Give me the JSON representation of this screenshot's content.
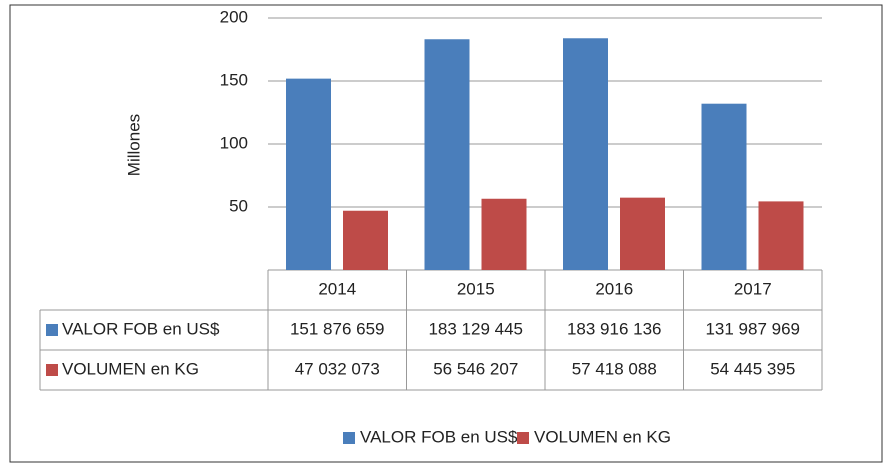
{
  "chart_data": {
    "type": "bar",
    "y_label": "Millones",
    "categories": [
      "2014",
      "2015",
      "2016",
      "2017"
    ],
    "series": [
      {
        "name": "VALOR FOB en US$",
        "color": "#4a7ebb",
        "values": [
          151.876659,
          183.129445,
          183.916136,
          131.987969
        ],
        "value_labels": [
          "151 876 659",
          "183 129 445",
          "183 916 136",
          "131 987 969"
        ]
      },
      {
        "name": "VOLUMEN en KG",
        "color": "#be4b48",
        "values": [
          47.032073,
          56.546207,
          57.418088,
          54.445395
        ],
        "value_labels": [
          "47 032 073",
          "56 546 207",
          "57 418 088",
          "54 445 395"
        ]
      }
    ],
    "ylim": [
      0,
      200
    ],
    "yticks": [
      50,
      100,
      150,
      200
    ],
    "grid": true,
    "legend": "bottom"
  }
}
